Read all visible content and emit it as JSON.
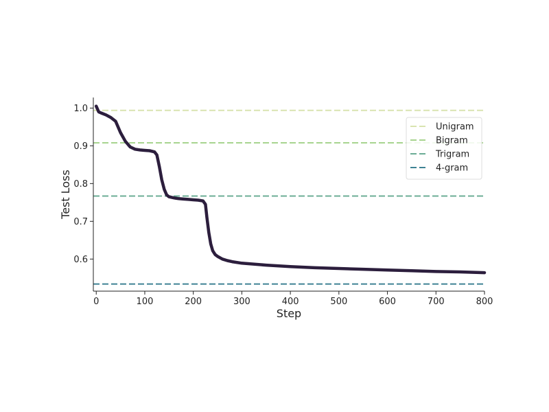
{
  "chart_data": {
    "type": "line",
    "xlabel": "Step",
    "ylabel": "Test Loss",
    "xlim": [
      -6,
      800
    ],
    "ylim": [
      0.515,
      1.028
    ],
    "x_ticks": [
      0,
      100,
      200,
      300,
      400,
      500,
      600,
      700,
      800
    ],
    "x_tick_labels": [
      "0",
      "100",
      "200",
      "300",
      "400",
      "500",
      "600",
      "700",
      "800"
    ],
    "y_ticks": [
      0.6,
      0.7,
      0.8,
      0.9,
      1.0
    ],
    "y_tick_labels": [
      "0.6",
      "0.7",
      "0.8",
      "0.9",
      "1.0"
    ],
    "grid": false,
    "legend_position": "top-right",
    "series": [
      {
        "style": "solid",
        "color": "#2c1e3d",
        "x": [
          0,
          5,
          10,
          20,
          30,
          40,
          50,
          60,
          70,
          80,
          90,
          100,
          110,
          120,
          125,
          130,
          135,
          140,
          145,
          150,
          160,
          170,
          180,
          190,
          200,
          210,
          220,
          225,
          228,
          232,
          236,
          240,
          245,
          250,
          260,
          270,
          280,
          300,
          350,
          400,
          450,
          500,
          550,
          600,
          650,
          700,
          750,
          800
        ],
        "y": [
          1.005,
          0.99,
          0.987,
          0.982,
          0.975,
          0.965,
          0.935,
          0.912,
          0.897,
          0.891,
          0.889,
          0.888,
          0.887,
          0.884,
          0.876,
          0.845,
          0.81,
          0.785,
          0.77,
          0.765,
          0.762,
          0.76,
          0.759,
          0.758,
          0.757,
          0.756,
          0.754,
          0.745,
          0.71,
          0.67,
          0.64,
          0.622,
          0.612,
          0.607,
          0.6,
          0.596,
          0.593,
          0.589,
          0.584,
          0.58,
          0.577,
          0.575,
          0.573,
          0.571,
          0.569,
          0.567,
          0.566,
          0.564
        ]
      },
      {
        "name": "Unigram",
        "style": "dashed",
        "color": "#d9e4b0",
        "x": [
          -6,
          800
        ],
        "y": [
          0.994,
          0.994
        ]
      },
      {
        "name": "Bigram",
        "style": "dashed",
        "color": "#a7d48e",
        "x": [
          -6,
          800
        ],
        "y": [
          0.908,
          0.908
        ]
      },
      {
        "name": "Trigram",
        "style": "dashed",
        "color": "#6bac95",
        "x": [
          -6,
          800
        ],
        "y": [
          0.767,
          0.767
        ]
      },
      {
        "name": "4-gram",
        "style": "dashed",
        "color": "#3e8294",
        "x": [
          -6,
          800
        ],
        "y": [
          0.534,
          0.534
        ]
      }
    ]
  }
}
